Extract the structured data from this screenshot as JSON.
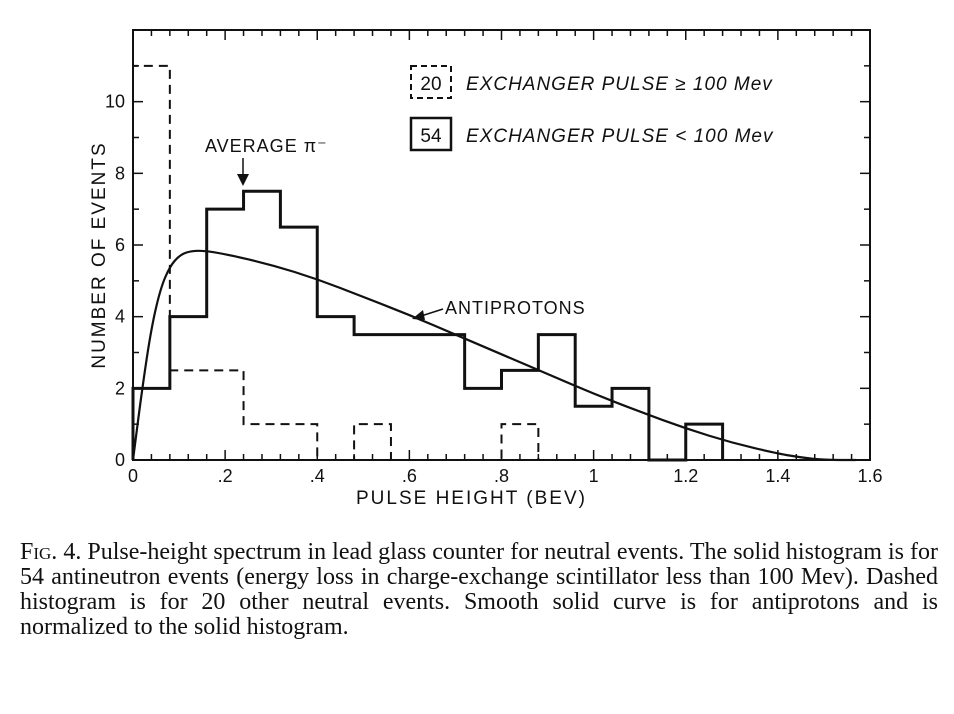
{
  "chart_data": {
    "type": "histogram",
    "xlabel": "PULSE HEIGHT (BEV)",
    "ylabel": "NUMBER OF EVENTS",
    "xlim": [
      0,
      1.6
    ],
    "ylim": [
      0,
      12
    ],
    "x_ticks": [
      {
        "value": 0,
        "label": "0"
      },
      {
        "value": 0.2,
        "label": ".2"
      },
      {
        "value": 0.4,
        "label": ".4"
      },
      {
        "value": 0.6,
        "label": ".6"
      },
      {
        "value": 0.8,
        "label": ".8"
      },
      {
        "value": 1.0,
        "label": "1"
      },
      {
        "value": 1.2,
        "label": "1.2"
      },
      {
        "value": 1.4,
        "label": "1.4"
      },
      {
        "value": 1.6,
        "label": "1.6"
      }
    ],
    "y_ticks": [
      {
        "value": 0,
        "label": "0"
      },
      {
        "value": 2,
        "label": "2"
      },
      {
        "value": 4,
        "label": "4"
      },
      {
        "value": 6,
        "label": "6"
      },
      {
        "value": 8,
        "label": "8"
      },
      {
        "value": 10,
        "label": "10"
      }
    ],
    "bin_width": 0.08,
    "series": [
      {
        "style": "solid",
        "count_label": "54",
        "legend": "EXCHANGER PULSE < 100 Mev",
        "bins": [
          {
            "x0": 0.0,
            "x1": 0.08,
            "value": 2
          },
          {
            "x0": 0.08,
            "x1": 0.16,
            "value": 4
          },
          {
            "x0": 0.16,
            "x1": 0.24,
            "value": 7
          },
          {
            "x0": 0.24,
            "x1": 0.32,
            "value": 7.5
          },
          {
            "x0": 0.32,
            "x1": 0.4,
            "value": 6.5
          },
          {
            "x0": 0.4,
            "x1": 0.48,
            "value": 4
          },
          {
            "x0": 0.48,
            "x1": 0.56,
            "value": 3.5
          },
          {
            "x0": 0.56,
            "x1": 0.64,
            "value": 3.5
          },
          {
            "x0": 0.64,
            "x1": 0.72,
            "value": 3.5
          },
          {
            "x0": 0.72,
            "x1": 0.8,
            "value": 2
          },
          {
            "x0": 0.8,
            "x1": 0.88,
            "value": 2.5
          },
          {
            "x0": 0.88,
            "x1": 0.96,
            "value": 3.5
          },
          {
            "x0": 0.96,
            "x1": 1.04,
            "value": 1.5
          },
          {
            "x0": 1.04,
            "x1": 1.12,
            "value": 2
          },
          {
            "x0": 1.12,
            "x1": 1.2,
            "value": 0
          },
          {
            "x0": 1.2,
            "x1": 1.28,
            "value": 1
          }
        ]
      },
      {
        "style": "dashed",
        "count_label": "20",
        "legend": "EXCHANGER PULSE ≥ 100 Mev",
        "bins": [
          {
            "x0": 0.0,
            "x1": 0.08,
            "value": 11
          },
          {
            "x0": 0.08,
            "x1": 0.16,
            "value": 2.5
          },
          {
            "x0": 0.16,
            "x1": 0.24,
            "value": 2.5
          },
          {
            "x0": 0.24,
            "x1": 0.32,
            "value": 1
          },
          {
            "x0": 0.32,
            "x1": 0.4,
            "value": 1
          },
          {
            "x0": 0.4,
            "x1": 0.48,
            "value": 0
          },
          {
            "x0": 0.48,
            "x1": 0.56,
            "value": 1
          },
          {
            "x0": 0.56,
            "x1": 0.64,
            "value": 0
          },
          {
            "x0": 0.64,
            "x1": 0.72,
            "value": 0
          },
          {
            "x0": 0.72,
            "x1": 0.8,
            "value": 0
          },
          {
            "x0": 0.8,
            "x1": 0.88,
            "value": 1
          }
        ]
      }
    ],
    "curve": {
      "label": "ANTIPROTONS",
      "points": [
        [
          0.0,
          0
        ],
        [
          0.02,
          2.0
        ],
        [
          0.04,
          3.7
        ],
        [
          0.06,
          4.8
        ],
        [
          0.08,
          5.4
        ],
        [
          0.1,
          5.7
        ],
        [
          0.12,
          5.82
        ],
        [
          0.15,
          5.85
        ],
        [
          0.2,
          5.75
        ],
        [
          0.3,
          5.45
        ],
        [
          0.4,
          5.05
        ],
        [
          0.5,
          4.55
        ],
        [
          0.6,
          4.05
        ],
        [
          0.7,
          3.5
        ],
        [
          0.8,
          2.95
        ],
        [
          0.9,
          2.4
        ],
        [
          1.0,
          1.85
        ],
        [
          1.1,
          1.35
        ],
        [
          1.2,
          0.88
        ],
        [
          1.3,
          0.48
        ],
        [
          1.4,
          0.18
        ],
        [
          1.45,
          0.07
        ],
        [
          1.5,
          0.0
        ],
        [
          1.57,
          0.0
        ]
      ]
    },
    "annotations": [
      {
        "text": "AVERAGE π⁻",
        "x": 0.3,
        "y": 8.0
      },
      {
        "text": "ANTIPROTONS",
        "x": 0.78,
        "y": 4.1
      }
    ],
    "legend_position": "top-right"
  },
  "caption": {
    "figure_label": "Fig. 4.",
    "text": " Pulse-height spectrum in lead glass counter for neutral events. The solid histogram is for 54 antineutron events (energy loss in charge-exchange scintillator less than 100 Mev). Dashed histogram is for 20 other neutral events. Smooth solid curve is for antiprotons and is normalized to the solid histogram."
  }
}
